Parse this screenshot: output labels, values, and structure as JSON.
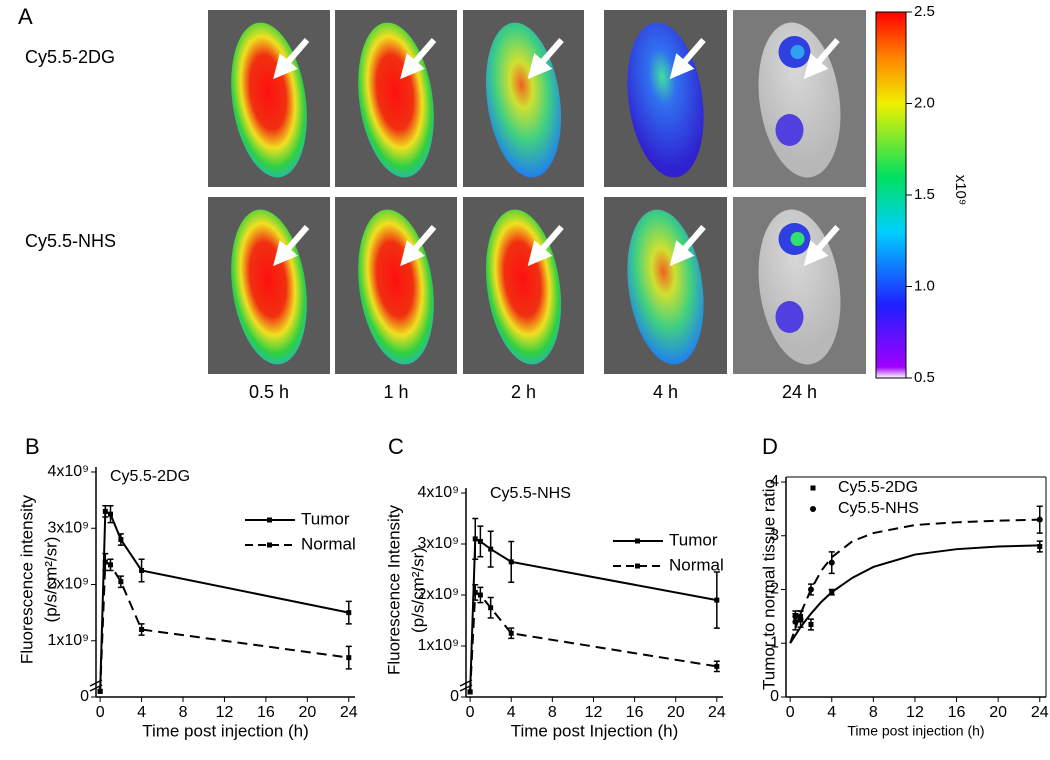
{
  "panel_a": {
    "label": "A",
    "rows": [
      "Cy5.5-2DG",
      "Cy5.5-NHS"
    ],
    "times": [
      "0.5 h",
      "1 h",
      "2 h",
      "4 h",
      "24 h"
    ],
    "colorbar": {
      "range": [
        0.5,
        2.5
      ],
      "ticks": [
        2.5,
        {
          "value": 2,
          "label": "2.0"
        },
        1.5,
        {
          "value": 1,
          "label": "1.0"
        },
        0.5
      ],
      "unit": "x10⁹"
    }
  },
  "chart_data": [
    {
      "type": "line",
      "panel": "B",
      "title": "Cy5.5-2DG",
      "xlabel": "Time post injection (h)",
      "ylabel": [
        "Fluorescence intensity",
        "(p/s/cm²/sr)"
      ],
      "xlim": [
        -0.4,
        24.6
      ],
      "xticks": [
        0,
        4,
        8,
        12,
        16,
        20,
        24
      ],
      "ylim": [
        0,
        4000000000
      ],
      "yticks": [
        0,
        {
          "value": 1000000000,
          "label": "1x10⁹"
        },
        {
          "value": 2000000000,
          "label": "2x10⁹"
        },
        {
          "value": 3000000000,
          "label": "3x10⁹"
        },
        {
          "value": 4000000000,
          "label": "4x10⁹"
        }
      ],
      "axis_break": true,
      "legend": "upper right",
      "x": [
        0,
        0.5,
        1,
        2,
        4,
        24
      ],
      "series": [
        {
          "name": "Tumor",
          "style": "solid",
          "color": "#000000",
          "values": [
            100000000,
            3300000000,
            3250000000,
            2800000000,
            2250000000,
            1500000000
          ],
          "errors": [
            0,
            100000000,
            150000000,
            100000000,
            200000000,
            200000000
          ]
        },
        {
          "name": "Normal",
          "style": "dashed",
          "color": "#000000",
          "values": [
            100000000,
            2400000000,
            2350000000,
            2050000000,
            1200000000,
            700000000
          ],
          "errors": [
            0,
            150000000,
            100000000,
            100000000,
            100000000,
            200000000
          ]
        }
      ]
    },
    {
      "type": "line",
      "panel": "C",
      "title": "Cy5.5-NHS",
      "xlabel": "Time post Injection (h)",
      "ylabel": [
        "Fluorescence Intensity",
        "(p/s/cm²/sr)"
      ],
      "xlim": [
        -0.4,
        24.6
      ],
      "xticks": [
        0,
        4,
        8,
        12,
        16,
        20,
        24
      ],
      "ylim": [
        0,
        4000000000
      ],
      "yticks": [
        0,
        {
          "value": 1000000000,
          "label": "1x10⁹"
        },
        {
          "value": 2000000000,
          "label": "2x10⁹"
        },
        {
          "value": 3000000000,
          "label": "3x10⁹"
        },
        {
          "value": 4000000000,
          "label": "4x10⁹"
        }
      ],
      "axis_break": true,
      "legend": "upper right",
      "x": [
        0,
        0.5,
        1,
        2,
        4,
        24
      ],
      "series": [
        {
          "name": "Tumor",
          "style": "solid",
          "color": "#000000",
          "values": [
            100000000,
            3100000000,
            3050000000,
            2900000000,
            2650000000,
            1900000000
          ],
          "errors": [
            0,
            400000000,
            300000000,
            350000000,
            400000000,
            550000000
          ]
        },
        {
          "name": "Normal",
          "style": "dashed",
          "color": "#000000",
          "values": [
            100000000,
            2050000000,
            2000000000,
            1750000000,
            1250000000,
            600000000
          ],
          "errors": [
            0,
            150000000,
            150000000,
            200000000,
            100000000,
            100000000
          ]
        }
      ]
    },
    {
      "type": "scatter",
      "panel": "D",
      "xlabel": "Time post injection (h)",
      "ylabel": [
        "Tumor to normal tissue ratio"
      ],
      "xlim": [
        -0.4,
        24.6
      ],
      "xticks": [
        0,
        4,
        8,
        12,
        16,
        20,
        24
      ],
      "ylim": [
        0,
        4
      ],
      "yticks": [
        0,
        1,
        2,
        3,
        4
      ],
      "legend": "upper left",
      "x": [
        0.5,
        1,
        2,
        4,
        24
      ],
      "fit_x": [
        0,
        1,
        2,
        3,
        4,
        6,
        8,
        12,
        16,
        20,
        24
      ],
      "series": [
        {
          "name": "Cy5.5-2DG",
          "marker": "square",
          "style": "solid",
          "color": "#000000",
          "values": [
            1.4,
            1.5,
            1.35,
            1.95,
            2.8
          ],
          "errors": [
            0.15,
            0.1,
            0.1,
            0.05,
            0.1
          ],
          "fit_values": [
            1.0,
            1.3,
            1.55,
            1.77,
            1.95,
            2.22,
            2.42,
            2.65,
            2.75,
            2.8,
            2.82
          ]
        },
        {
          "name": "Cy5.5-NHS",
          "marker": "circle",
          "style": "dashed",
          "color": "#000000",
          "values": [
            1.5,
            1.45,
            2.0,
            2.5,
            3.3
          ],
          "errors": [
            0.1,
            0.15,
            0.1,
            0.2,
            0.25
          ],
          "fit_values": [
            1.0,
            1.55,
            2.0,
            2.35,
            2.6,
            2.9,
            3.05,
            3.2,
            3.25,
            3.28,
            3.3
          ]
        }
      ]
    }
  ]
}
